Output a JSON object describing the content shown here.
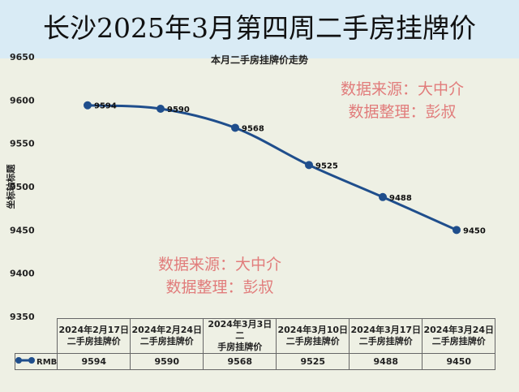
{
  "header": {
    "title": "长沙2025年3月第四周二手房挂牌价"
  },
  "watermarks": [
    {
      "source": "数据来源：大中介",
      "editor": "数据整理：彭叔"
    },
    {
      "source": "数据来源：大中介",
      "editor": "数据整理：彭叔"
    }
  ],
  "chart_data": {
    "type": "line",
    "title": "本月二手房挂牌价走势",
    "ylabel": "坐标轴标题",
    "xlabel": "",
    "ylim": [
      9350,
      9650
    ],
    "yticks": [
      "9650",
      "9600",
      "9550",
      "9500",
      "9450",
      "9400",
      "9350"
    ],
    "categories": [
      "2024年2月17日二手房挂牌价",
      "2024年2月24日二手房挂牌价",
      "2024年3月3日二手房挂牌价",
      "2024年3月10日二手房挂牌价",
      "2024年3月17日二手房挂牌价",
      "2024年3月24日二手房挂牌价"
    ],
    "category_lines": [
      [
        "2024年2月17日",
        "二手房挂牌价"
      ],
      [
        "2024年2月24日",
        "二手房挂牌价"
      ],
      [
        "2024年3月3日二",
        "手房挂牌价"
      ],
      [
        "2024年3月10日",
        "二手房挂牌价"
      ],
      [
        "2024年3月17日",
        "二手房挂牌价"
      ],
      [
        "2024年3月24日",
        "二手房挂牌价"
      ]
    ],
    "series": [
      {
        "name": "RMB",
        "values": [
          9594,
          9590,
          9568,
          9525,
          9488,
          9450
        ],
        "labels": [
          "9594",
          "9590",
          "9568",
          "9525",
          "9488",
          "9450"
        ],
        "color": "#1f4e8c"
      }
    ],
    "grid": false,
    "legend": "data-table"
  }
}
